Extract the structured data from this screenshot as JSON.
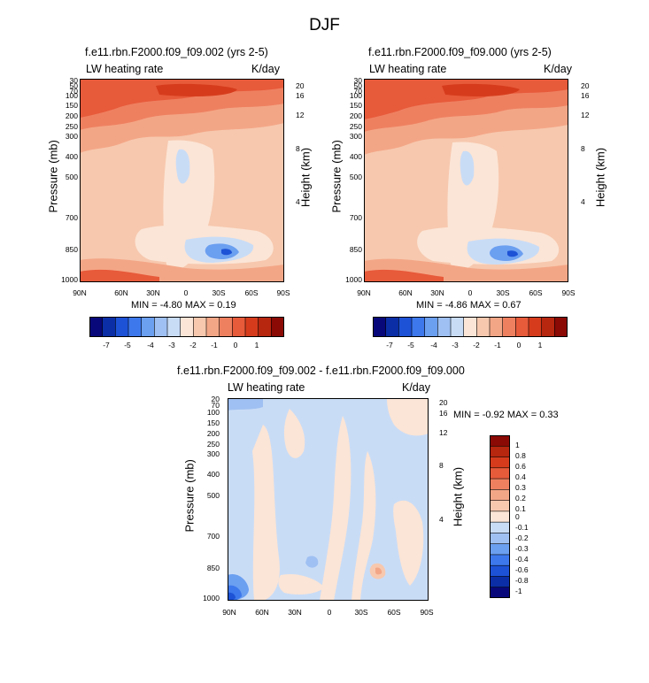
{
  "title": "DJF",
  "colors": {
    "scale": [
      "#08087a",
      "#0b2ea6",
      "#1d52d6",
      "#3d78ec",
      "#6b9ff0",
      "#9fc0f2",
      "#c9dcf6",
      "#fbe5d6",
      "#f7c8ae",
      "#f3a686",
      "#ee8060",
      "#e75a3a",
      "#d63c1c",
      "#b7260f",
      "#8b0a05"
    ]
  },
  "chart_data": [
    {
      "type": "heatmap",
      "title": "f.e11.rbn.F2000.f09_f09.002 (yrs 2-5)",
      "left_label": "LW heating rate",
      "right_label": "K/day",
      "xlabel": "",
      "ylabel": "Pressure (mb)",
      "y2label": "Height (km)",
      "x_ticks": [
        "90N",
        "60N",
        "30N",
        "0",
        "30S",
        "60S",
        "90S"
      ],
      "y_ticks": [
        "30",
        "50",
        "70",
        "100",
        "150",
        "200",
        "250",
        "300",
        "400",
        "500",
        "700",
        "850",
        "1000"
      ],
      "y2_ticks": [
        "20",
        "16",
        "12",
        "8",
        "4"
      ],
      "ylim": [
        1000,
        30
      ],
      "min_label": "MIN = -4.80  MAX = 0.19",
      "colorbar_ticks": [
        "-7",
        "-5",
        "-4",
        "-3",
        "-2",
        "-1",
        "0",
        "1"
      ],
      "range": [
        -4.8,
        0.19
      ]
    },
    {
      "type": "heatmap",
      "title": "f.e11.rbn.F2000.f09_f09.000 (yrs 2-5)",
      "left_label": "LW heating rate",
      "right_label": "K/day",
      "xlabel": "",
      "ylabel": "Pressure (mb)",
      "y2label": "Height (km)",
      "x_ticks": [
        "90N",
        "60N",
        "30N",
        "0",
        "30S",
        "60S",
        "90S"
      ],
      "y_ticks": [
        "30",
        "50",
        "70",
        "100",
        "150",
        "200",
        "250",
        "300",
        "400",
        "500",
        "700",
        "850",
        "1000"
      ],
      "y2_ticks": [
        "20",
        "16",
        "12",
        "8",
        "4"
      ],
      "ylim": [
        1000,
        30
      ],
      "min_label": "MIN = -4.86  MAX = 0.67",
      "colorbar_ticks": [
        "-7",
        "-5",
        "-4",
        "-3",
        "-2",
        "-1",
        "0",
        "1"
      ],
      "range": [
        -4.86,
        0.67
      ]
    },
    {
      "type": "heatmap",
      "title": "f.e11.rbn.F2000.f09_f09.002 - f.e11.rbn.F2000.f09_f09.000",
      "left_label": "LW heating rate",
      "right_label": "K/day",
      "xlabel": "",
      "ylabel": "Pressure (mb)",
      "y2label": "Height (km)",
      "x_ticks": [
        "90N",
        "60N",
        "30N",
        "0",
        "30S",
        "60S",
        "90S"
      ],
      "y_ticks": [
        "20",
        "70",
        "100",
        "150",
        "200",
        "250",
        "300",
        "400",
        "500",
        "700",
        "850",
        "1000"
      ],
      "y2_ticks": [
        "20",
        "16",
        "12",
        "8",
        "4"
      ],
      "ylim": [
        1000,
        20
      ],
      "min_label": "MIN = -0.92  MAX = 0.33",
      "colorbar_ticks": [
        "1",
        "0.8",
        "0.6",
        "0.4",
        "0.3",
        "0.2",
        "0.1",
        "0",
        "-0.1",
        "-0.2",
        "-0.3",
        "-0.4",
        "-0.6",
        "-0.8",
        "-1"
      ],
      "range": [
        -0.92,
        0.33
      ]
    }
  ]
}
